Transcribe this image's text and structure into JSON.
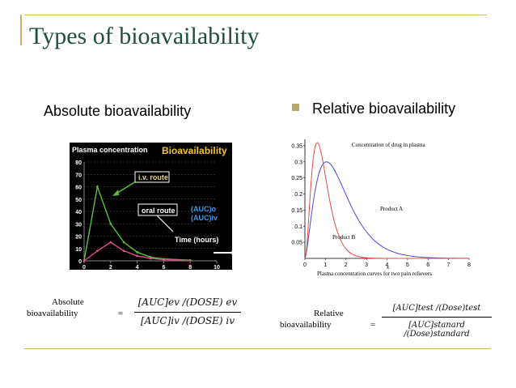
{
  "slide": {
    "title": "Types of bioavailability",
    "left_heading": "Absolute bioavailability",
    "right_heading": "Relative bioavailability"
  },
  "left_chart": {
    "chart_data": {
      "type": "line",
      "title": "Bioavailability",
      "ylabel": "Plasma concentration",
      "xlabel": "Time (hours)",
      "x_ticks": [
        "0",
        "2",
        "4",
        "6",
        "8",
        "10"
      ],
      "y_ticks": [
        "0",
        "10",
        "20",
        "30",
        "40",
        "50",
        "60",
        "70",
        "80"
      ],
      "xlim": [
        0,
        10
      ],
      "ylim": [
        0,
        80
      ],
      "series": [
        {
          "name": "i.v. route",
          "color": "#5cbf3a",
          "x": [
            0,
            1,
            2,
            3,
            4,
            5,
            6,
            8
          ],
          "y": [
            0,
            60,
            30,
            15,
            7,
            3,
            1.5,
            0.5
          ]
        },
        {
          "name": "oral route",
          "color": "#e24a8a",
          "x": [
            0,
            1,
            2,
            3,
            4,
            5,
            6,
            8
          ],
          "y": [
            0,
            8,
            15,
            8,
            4,
            2,
            1,
            0.3
          ]
        }
      ],
      "annotation_lines": [
        "(AUC)o",
        "(AUC)iv"
      ]
    }
  },
  "right_chart": {
    "chart_data": {
      "type": "line",
      "title": "Concentration of drug in plasma",
      "caption": "Plasma concentration curves for two pain relievers",
      "xlabel": "x",
      "x_ticks": [
        "0",
        "1",
        "2",
        "3",
        "4",
        "5",
        "6",
        "7",
        "8"
      ],
      "y_ticks": [
        "0.05",
        "0.1",
        "0.15",
        "0.2",
        "0.25",
        "0.3",
        "0.35"
      ],
      "xlim": [
        0,
        8
      ],
      "ylim": [
        0,
        0.37
      ],
      "series": [
        {
          "name": "Product A",
          "color": "#4a4ae0"
        },
        {
          "name": "Product B",
          "color": "#e84a4a"
        }
      ]
    }
  },
  "formulas": {
    "absolute": {
      "label_line1": "Absolute",
      "label_line2": "bioavailability",
      "equals": "=",
      "numerator": "[AUC]ev /(DOSE) ev",
      "denominator": "[AUC]iv /(DOSE) iv"
    },
    "relative": {
      "label_line1": "Relative",
      "label_line2": "bioavailability",
      "equals": "=",
      "numerator": "[AUC]test /(Dose)test",
      "denominator": "[AUC]stanard /(Dose)standard"
    }
  }
}
